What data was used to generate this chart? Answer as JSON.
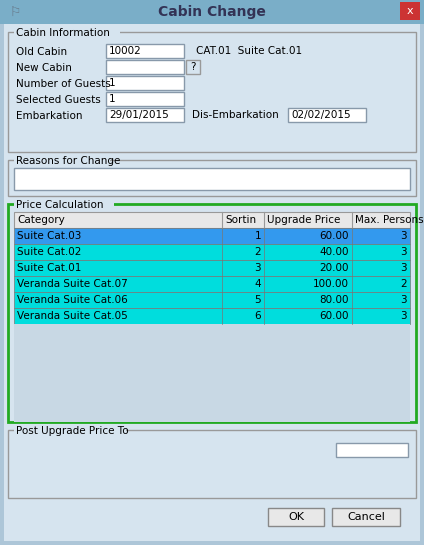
{
  "title": "Cabin Change",
  "bg_color": "#adc6d8",
  "dialog_bg": "#d6e4ef",
  "title_bar_color": "#7aaec8",
  "close_btn_color": "#cc3333",
  "section_border_color": "#999999",
  "price_section_border_color": "#22aa22",
  "cabin_info": {
    "label": "Cabin Information",
    "old_cabin_label": "Old Cabin",
    "old_cabin_value": "10002",
    "old_cabin_extra": "CAT.01  Suite Cat.01",
    "new_cabin_label": "New Cabin",
    "num_guests_label": "Number of Guests",
    "num_guests_value": "1",
    "selected_guests_label": "Selected Guests",
    "selected_guests_value": "1",
    "embarkation_label": "Embarkation",
    "embarkation_value": "29/01/2015",
    "disembarkation_label": "Dis-Embarkation",
    "disembarkation_value": "02/02/2015"
  },
  "reasons_label": "Reasons for Change",
  "price_calc_label": "Price Calculation",
  "table_headers": [
    "Category",
    "Sortin",
    "Upgrade Price",
    "Max. Persons"
  ],
  "table_rows": [
    {
      "category": "Suite Cat.03",
      "sorting": "1",
      "upgrade_price": "60.00",
      "max_persons": "3",
      "row_color": "#3399ee"
    },
    {
      "category": "Suite Cat.02",
      "sorting": "2",
      "upgrade_price": "40.00",
      "max_persons": "3",
      "row_color": "#00dddd"
    },
    {
      "category": "Suite Cat.01",
      "sorting": "3",
      "upgrade_price": "20.00",
      "max_persons": "3",
      "row_color": "#00dddd"
    },
    {
      "category": "Veranda Suite Cat.07",
      "sorting": "4",
      "upgrade_price": "100.00",
      "max_persons": "2",
      "row_color": "#00dddd"
    },
    {
      "category": "Veranda Suite Cat.06",
      "sorting": "5",
      "upgrade_price": "80.00",
      "max_persons": "3",
      "row_color": "#00dddd"
    },
    {
      "category": "Veranda Suite Cat.05",
      "sorting": "6",
      "upgrade_price": "60.00",
      "max_persons": "3",
      "row_color": "#00dddd"
    }
  ],
  "post_upgrade_label": "Post Upgrade Price To",
  "ok_btn": "OK",
  "cancel_btn": "Cancel",
  "input_box_color": "#ffffff",
  "input_border_color": "#8899aa",
  "table_header_color": "#e8e8e8",
  "table_area_color": "#c8d8e4"
}
